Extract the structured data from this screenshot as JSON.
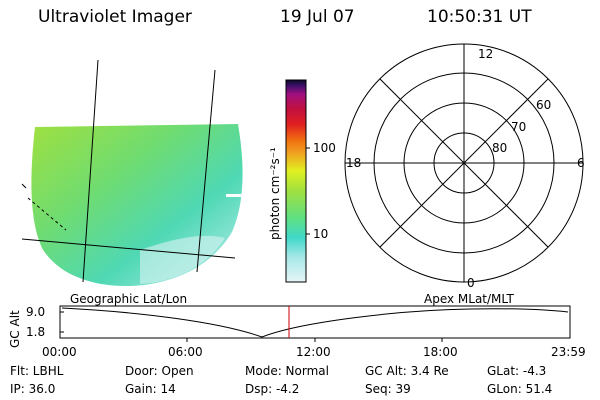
{
  "header": {
    "title": "Ultraviolet Imager",
    "date": "19 Jul 07",
    "time": "10:50:31 UT"
  },
  "image_panel": {
    "label": "Geographic Lat/Lon"
  },
  "colorbar": {
    "unit_label": "photon cm⁻²s⁻¹",
    "ticks": [
      "100",
      "10"
    ],
    "scale": "log",
    "colors": [
      "#e6f5f7",
      "#a8e8e8",
      "#40d8c8",
      "#60e080",
      "#a0e040",
      "#e0f020",
      "#f0a020",
      "#f07010",
      "#e02020",
      "#c01040",
      "#a01080",
      "#40106a",
      "#0b0b2a"
    ]
  },
  "polar_plot": {
    "label": "Apex MLat/MLT",
    "mlt_labels": {
      "top": "12",
      "right": "6",
      "bottom": "0",
      "left": "18"
    },
    "lat_labels": [
      "60",
      "70",
      "80"
    ]
  },
  "altitude_plot": {
    "ylabel": "GC Alt",
    "yticks": [
      "9.0",
      "1.8"
    ],
    "xticks": [
      "00:00",
      "06:00",
      "12:00",
      "18:00",
      "23:59"
    ],
    "marker_time": "10:50:31",
    "marker_color": "#cc0000"
  },
  "info": {
    "flt": "Flt: LBHL",
    "ip": "IP: 36.0",
    "door": "Door: Open",
    "gain": "Gain: 14",
    "mode": "Mode: Normal",
    "dsp": "Dsp:   -4.2",
    "gc_alt": "GC Alt: 3.4 Re",
    "seq": "Seq: 39",
    "glat": "GLat:   -4.3",
    "glon": "GLon:  51.4"
  }
}
